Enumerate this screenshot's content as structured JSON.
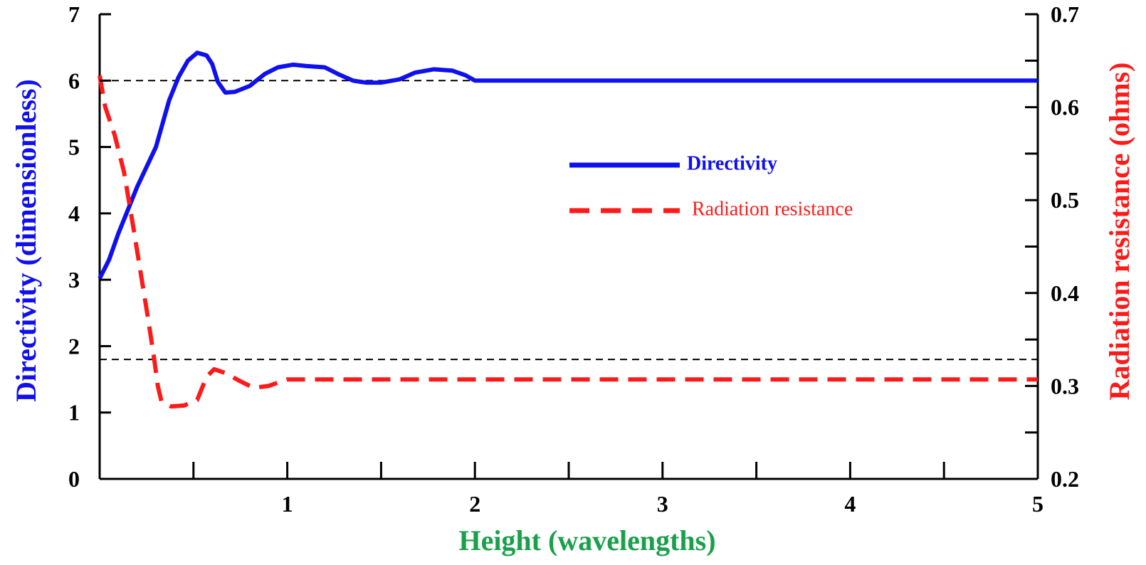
{
  "chart_data": {
    "type": "line",
    "xlabel": "Height (wavelengths)",
    "xlim": [
      0,
      5
    ],
    "x_ticks": [
      1,
      2,
      3,
      4,
      5
    ],
    "x_minor_ticks": [
      0.5,
      1.5,
      2.5,
      3.5,
      4.5
    ],
    "y_left": {
      "label": "Directivity (dimensionless)",
      "lim": [
        0,
        7
      ],
      "ticks": [
        0,
        1,
        2,
        3,
        4,
        5,
        6,
        7
      ],
      "color": "#1010ee"
    },
    "y_right": {
      "label": "Radiation resistance (ohms)",
      "lim": [
        0.2,
        0.7
      ],
      "ticks": [
        0.2,
        0.3,
        0.4,
        0.5,
        0.6,
        0.7
      ],
      "color": "#ff1a1a"
    },
    "x_label_color": "#1aa04a",
    "reference_lines": [
      {
        "axis": "left",
        "y": 6.0
      },
      {
        "axis": "left",
        "y": 1.8
      }
    ],
    "series": [
      {
        "name": "Directivity",
        "axis": "left",
        "style": "solid",
        "color": "#1010ee",
        "x": [
          0,
          0.05,
          0.1,
          0.15,
          0.2,
          0.25,
          0.3,
          0.33,
          0.37,
          0.42,
          0.47,
          0.52,
          0.57,
          0.6,
          0.63,
          0.67,
          0.72,
          0.8,
          0.88,
          0.95,
          1.03,
          1.1,
          1.2,
          1.27,
          1.35,
          1.42,
          1.5,
          1.6,
          1.68,
          1.78,
          1.88,
          1.95,
          2.0,
          2.5,
          3.0,
          3.5,
          4.0,
          4.5,
          5.0
        ],
        "values": [
          3.02,
          3.3,
          3.7,
          4.05,
          4.4,
          4.7,
          5.0,
          5.3,
          5.7,
          6.05,
          6.3,
          6.42,
          6.38,
          6.25,
          5.98,
          5.82,
          5.83,
          5.92,
          6.1,
          6.2,
          6.24,
          6.22,
          6.2,
          6.1,
          6.0,
          5.97,
          5.97,
          6.02,
          6.12,
          6.17,
          6.15,
          6.08,
          6.0,
          6.0,
          6.0,
          6.0,
          6.0,
          6.0,
          6.0
        ]
      },
      {
        "name": "Radiation resistance",
        "axis": "right",
        "style": "dashed",
        "color": "#ff1a1a",
        "x": [
          0,
          0.03,
          0.08,
          0.13,
          0.18,
          0.22,
          0.26,
          0.29,
          0.31,
          0.33,
          0.38,
          0.45,
          0.52,
          0.57,
          0.61,
          0.67,
          0.75,
          0.82,
          0.9,
          0.97,
          1.0,
          1.5,
          2.0,
          2.5,
          3.0,
          3.5,
          4.0,
          4.5,
          5.0
        ],
        "values": [
          0.634,
          0.6,
          0.57,
          0.53,
          0.47,
          0.42,
          0.37,
          0.33,
          0.3,
          0.283,
          0.278,
          0.279,
          0.285,
          0.31,
          0.318,
          0.314,
          0.305,
          0.298,
          0.3,
          0.305,
          0.307,
          0.307,
          0.307,
          0.307,
          0.307,
          0.307,
          0.307,
          0.307,
          0.307
        ]
      }
    ],
    "legend": {
      "placement": "center-right",
      "entries": [
        "Directivity",
        "Radiation resistance"
      ]
    }
  }
}
